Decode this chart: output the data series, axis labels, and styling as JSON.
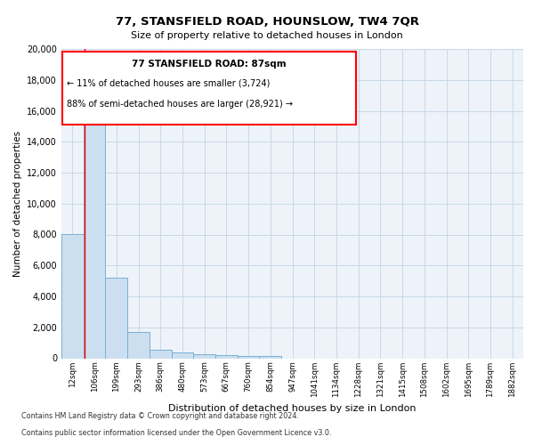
{
  "title": "77, STANSFIELD ROAD, HOUNSLOW, TW4 7QR",
  "subtitle": "Size of property relative to detached houses in London",
  "xlabel": "Distribution of detached houses by size in London",
  "ylabel": "Number of detached properties",
  "footer_line1": "Contains HM Land Registry data © Crown copyright and database right 2024.",
  "footer_line2": "Contains public sector information licensed under the Open Government Licence v3.0.",
  "bar_labels": [
    "12sqm",
    "106sqm",
    "199sqm",
    "293sqm",
    "386sqm",
    "480sqm",
    "573sqm",
    "667sqm",
    "760sqm",
    "854sqm",
    "947sqm",
    "1041sqm",
    "1134sqm",
    "1228sqm",
    "1321sqm",
    "1415sqm",
    "1508sqm",
    "1602sqm",
    "1695sqm",
    "1789sqm",
    "1882sqm"
  ],
  "bar_heights": [
    8050,
    16200,
    5200,
    1700,
    550,
    380,
    270,
    200,
    150,
    120,
    0,
    0,
    0,
    0,
    0,
    0,
    0,
    0,
    0,
    0,
    0
  ],
  "bar_color": "#ccdff0",
  "bar_edge_color": "#7ab0d4",
  "grid_color": "#c8d8e8",
  "background_color": "#ffffff",
  "plot_bg_color": "#edf3f9",
  "red_line_x": 0.57,
  "annotation_text_line1": "77 STANSFIELD ROAD: 87sqm",
  "annotation_text_line2": "← 11% of detached houses are smaller (3,724)",
  "annotation_text_line3": "88% of semi-detached houses are larger (28,921) →",
  "ylim": [
    0,
    20000
  ],
  "yticks": [
    0,
    2000,
    4000,
    6000,
    8000,
    10000,
    12000,
    14000,
    16000,
    18000,
    20000
  ]
}
